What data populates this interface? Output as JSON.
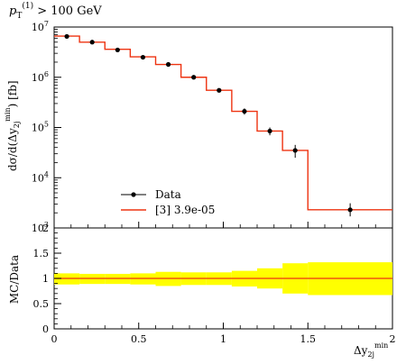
{
  "chart_data": [
    {
      "type": "line",
      "panel": "main",
      "title": "p_T^(1) > 100 GeV",
      "title_parts": {
        "p": "p",
        "sub": "T",
        "sup": "(1)",
        "rest": " > 100 GeV"
      },
      "ylabel": "dσ/d(Δy_2j^min) [fb]",
      "ylabel_parts": {
        "pre": "dσ/d(Δy",
        "sub": "2j",
        "sup": "min",
        "post": ") [fb]"
      },
      "xlim": [
        0,
        2
      ],
      "ylim": [
        1000,
        10000000
      ],
      "yscale": "log",
      "yticks": [
        {
          "value": 1000,
          "label": "10",
          "exp": "3"
        },
        {
          "value": 10000,
          "label": "10",
          "exp": "4"
        },
        {
          "value": 100000,
          "label": "10",
          "exp": "5"
        },
        {
          "value": 1000000,
          "label": "10",
          "exp": "6"
        },
        {
          "value": 10000000,
          "label": "10",
          "exp": "7"
        }
      ],
      "legend_position": "bottom-left",
      "series": [
        {
          "name": "Data",
          "style": "points-with-errors",
          "color": "#000000",
          "points": [
            {
              "x": 0.075,
              "y": 6500000,
              "ylo": 6300000,
              "yhi": 6700000
            },
            {
              "x": 0.225,
              "y": 5000000,
              "ylo": 4850000,
              "yhi": 5150000
            },
            {
              "x": 0.375,
              "y": 3500000,
              "ylo": 3350000,
              "yhi": 3650000
            },
            {
              "x": 0.525,
              "y": 2500000,
              "ylo": 2380000,
              "yhi": 2620000
            },
            {
              "x": 0.675,
              "y": 1800000,
              "ylo": 1650000,
              "yhi": 1950000
            },
            {
              "x": 0.825,
              "y": 1000000,
              "ylo": 920000,
              "yhi": 1080000
            },
            {
              "x": 0.975,
              "y": 550000,
              "ylo": 500000,
              "yhi": 600000
            },
            {
              "x": 1.125,
              "y": 210000,
              "ylo": 180000,
              "yhi": 240000
            },
            {
              "x": 1.275,
              "y": 85000,
              "ylo": 70000,
              "yhi": 100000
            },
            {
              "x": 1.425,
              "y": 35000,
              "ylo": 25000,
              "yhi": 45000
            },
            {
              "x": 1.75,
              "y": 2300,
              "ylo": 1700,
              "yhi": 3100
            }
          ]
        },
        {
          "name": "[3] 3.9e-05",
          "style": "step",
          "color": "#ee3311",
          "bins": [
            {
              "x0": 0.0,
              "x1": 0.15,
              "y": 6600000
            },
            {
              "x0": 0.15,
              "x1": 0.3,
              "y": 5000000
            },
            {
              "x0": 0.3,
              "x1": 0.45,
              "y": 3600000
            },
            {
              "x0": 0.45,
              "x1": 0.6,
              "y": 2550000
            },
            {
              "x0": 0.6,
              "x1": 0.75,
              "y": 1800000
            },
            {
              "x0": 0.75,
              "x1": 0.9,
              "y": 1000000
            },
            {
              "x0": 0.9,
              "x1": 1.05,
              "y": 550000
            },
            {
              "x0": 1.05,
              "x1": 1.2,
              "y": 210000
            },
            {
              "x0": 1.2,
              "x1": 1.35,
              "y": 85000
            },
            {
              "x0": 1.35,
              "x1": 1.5,
              "y": 35000
            },
            {
              "x0": 1.5,
              "x1": 2.0,
              "y": 2300
            }
          ]
        }
      ]
    },
    {
      "type": "area",
      "panel": "ratio",
      "ylabel": "MC/Data",
      "xlabel": "Δy_2j^min",
      "xlabel_parts": {
        "pre": "Δy",
        "sub": "2j",
        "sup": "min"
      },
      "xlim": [
        0,
        2
      ],
      "ylim": [
        0,
        2
      ],
      "xticks": [
        {
          "value": 0,
          "label": "0"
        },
        {
          "value": 0.5,
          "label": "0.5"
        },
        {
          "value": 1,
          "label": "1"
        },
        {
          "value": 1.5,
          "label": "1.5"
        },
        {
          "value": 2,
          "label": "2"
        }
      ],
      "yticks": [
        {
          "value": 0,
          "label": "0"
        },
        {
          "value": 0.5,
          "label": "0.5"
        },
        {
          "value": 1,
          "label": "1"
        },
        {
          "value": 1.5,
          "label": "1.5"
        },
        {
          "value": 2,
          "label": "2"
        }
      ],
      "band_color": "#ffff00",
      "line_color": "#ee3311",
      "band": [
        {
          "x0": 0.0,
          "x1": 0.15,
          "lo": 0.88,
          "hi": 1.1
        },
        {
          "x0": 0.15,
          "x1": 0.3,
          "lo": 0.89,
          "hi": 1.09
        },
        {
          "x0": 0.3,
          "x1": 0.45,
          "lo": 0.89,
          "hi": 1.09
        },
        {
          "x0": 0.45,
          "x1": 0.6,
          "lo": 0.88,
          "hi": 1.1
        },
        {
          "x0": 0.6,
          "x1": 0.75,
          "lo": 0.85,
          "hi": 1.13
        },
        {
          "x0": 0.75,
          "x1": 0.9,
          "lo": 0.87,
          "hi": 1.12
        },
        {
          "x0": 0.9,
          "x1": 1.05,
          "lo": 0.87,
          "hi": 1.12
        },
        {
          "x0": 1.05,
          "x1": 1.2,
          "lo": 0.84,
          "hi": 1.15
        },
        {
          "x0": 1.2,
          "x1": 1.35,
          "lo": 0.8,
          "hi": 1.2
        },
        {
          "x0": 1.35,
          "x1": 1.5,
          "lo": 0.7,
          "hi": 1.3
        },
        {
          "x0": 1.5,
          "x1": 2.0,
          "lo": 0.67,
          "hi": 1.32
        }
      ],
      "ratio_line": 1.0
    }
  ]
}
